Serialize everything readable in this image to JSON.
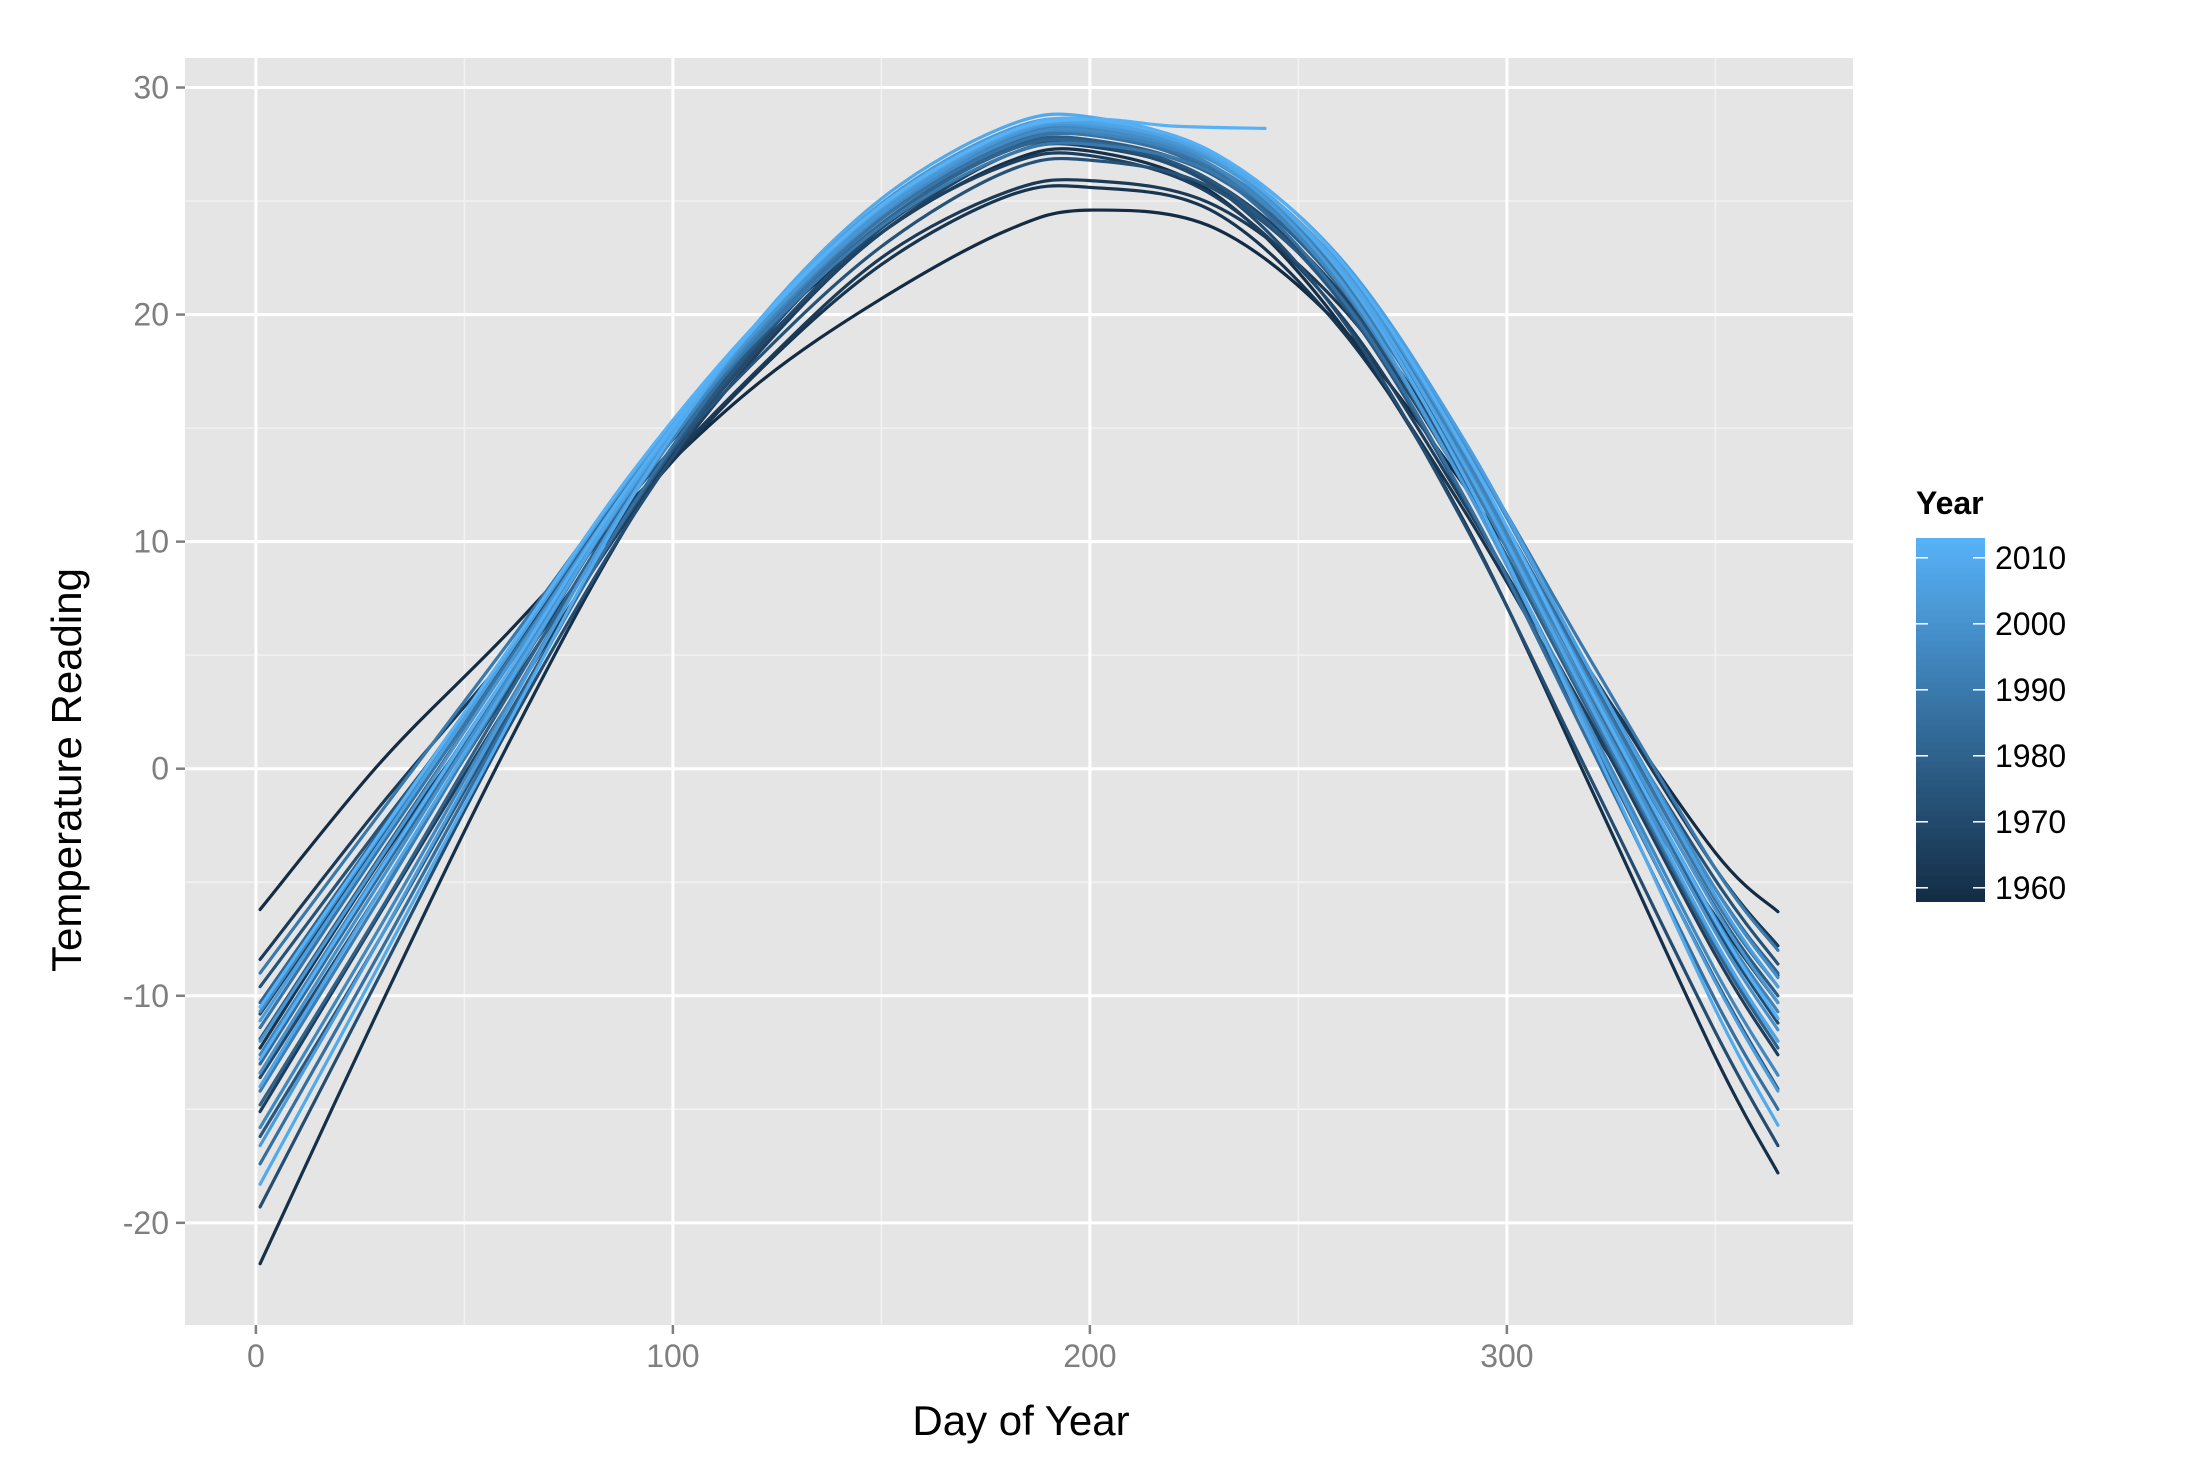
{
  "chart_data": {
    "type": "line",
    "title": "",
    "xlabel": "Day of Year",
    "ylabel": "Temperature Reading",
    "xlim": [
      -17,
      383
    ],
    "ylim": [
      -24.5,
      31.3
    ],
    "x_ticks": [
      0,
      100,
      200,
      300
    ],
    "x_tick_labels": [
      "0",
      "100",
      "200",
      "300"
    ],
    "y_ticks": [
      -20,
      -10,
      0,
      10,
      20,
      30
    ],
    "y_tick_labels": [
      "-20",
      "-10",
      "0",
      "10",
      "20",
      "30"
    ],
    "grid": true,
    "colors": {
      "panel_background": "#e5e5e5",
      "grid_major": "#ffffff",
      "grid_minor": "#f2f2f2",
      "low_color": "#132b43",
      "high_color": "#56b1f7"
    },
    "legend": {
      "title": "Year",
      "placement": "right",
      "type": "colorbar",
      "range": [
        1958,
        2013
      ],
      "breaks": [
        1960,
        1970,
        1980,
        1990,
        2000,
        2010
      ],
      "break_labels": [
        "1960",
        "1970",
        "1980",
        "1990",
        "2000",
        "2010"
      ]
    },
    "x_values": [
      1,
      30,
      60,
      90,
      120,
      150,
      180,
      200,
      230,
      260,
      290,
      320,
      350,
      365
    ],
    "series": [
      {
        "year": 1958,
        "values": [
          -6.2,
          0.3,
          5.9,
          11.8,
          16.9,
          20.7,
          23.7,
          24.6,
          23.8,
          19.5,
          12.4,
          4.2,
          -3.7,
          -6.3
        ]
      },
      {
        "year": 1960,
        "values": [
          -21.8,
          -10.4,
          0.9,
          11.0,
          18.8,
          23.6,
          26.7,
          27.2,
          25.3,
          19.6,
          10.8,
          -0.8,
          -12.7,
          -17.8
        ]
      },
      {
        "year": 1962,
        "values": [
          -12.3,
          -4.0,
          3.8,
          11.4,
          17.4,
          22.2,
          25.2,
          25.6,
          24.5,
          19.4,
          11.3,
          1.9,
          -6.5,
          -10.3
        ]
      },
      {
        "year": 1964,
        "values": [
          -8.4,
          -1.6,
          4.9,
          11.7,
          17.5,
          22.5,
          25.4,
          25.9,
          24.8,
          20.4,
          12.9,
          4.3,
          -4.4,
          -7.8
        ]
      },
      {
        "year": 1966,
        "values": [
          -15.1,
          -6.3,
          2.7,
          11.2,
          18.2,
          23.6,
          26.6,
          27.0,
          25.2,
          20.0,
          11.6,
          2.1,
          -8.2,
          -12.6
        ]
      },
      {
        "year": 1968,
        "values": [
          -10.8,
          -3.1,
          4.8,
          12.3,
          18.5,
          23.6,
          27.0,
          27.4,
          25.8,
          21.0,
          13.1,
          3.7,
          -5.3,
          -9.1
        ]
      },
      {
        "year": 1970,
        "values": [
          -13.6,
          -5.3,
          3.3,
          11.6,
          18.4,
          23.8,
          27.0,
          27.5,
          25.7,
          20.8,
          12.5,
          2.7,
          -7.0,
          -11.2
        ]
      },
      {
        "year": 1972,
        "values": [
          -19.3,
          -9.0,
          1.6,
          11.0,
          18.6,
          24.0,
          27.2,
          27.5,
          25.6,
          19.9,
          10.7,
          -0.4,
          -11.6,
          -16.6
        ]
      },
      {
        "year": 1974,
        "values": [
          -9.6,
          -2.5,
          4.7,
          12.0,
          18.0,
          23.0,
          26.3,
          26.8,
          25.5,
          20.8,
          13.0,
          3.9,
          -4.9,
          -8.6
        ]
      },
      {
        "year": 1976,
        "values": [
          -16.2,
          -7.4,
          2.2,
          11.4,
          18.7,
          24.0,
          27.2,
          27.6,
          25.8,
          20.6,
          11.8,
          1.4,
          -9.3,
          -14.1
        ]
      },
      {
        "year": 1978,
        "values": [
          -11.9,
          -3.8,
          4.4,
          12.3,
          18.8,
          24.0,
          27.3,
          27.7,
          26.1,
          21.4,
          13.3,
          3.5,
          -6.1,
          -10.0
        ]
      },
      {
        "year": 1980,
        "values": [
          -14.8,
          -6.2,
          3.1,
          12.0,
          19.0,
          24.4,
          27.6,
          28.0,
          26.2,
          21.2,
          12.6,
          2.4,
          -7.9,
          -12.3
        ]
      },
      {
        "year": 1982,
        "values": [
          -10.3,
          -2.7,
          5.0,
          12.6,
          18.9,
          24.0,
          27.2,
          27.6,
          26.1,
          21.5,
          13.7,
          4.1,
          -5.3,
          -9.0
        ]
      },
      {
        "year": 1984,
        "values": [
          -13.0,
          -4.6,
          3.9,
          12.2,
          19.1,
          24.3,
          27.5,
          27.9,
          26.3,
          21.6,
          13.2,
          3.1,
          -6.8,
          -11.0
        ]
      },
      {
        "year": 1986,
        "values": [
          -17.4,
          -8.0,
          2.0,
          11.5,
          19.0,
          24.4,
          27.6,
          28.0,
          26.2,
          20.8,
          11.9,
          1.0,
          -10.2,
          -15.0
        ]
      },
      {
        "year": 1988,
        "values": [
          -11.4,
          -3.4,
          4.6,
          12.5,
          19.0,
          24.2,
          27.4,
          27.9,
          26.4,
          21.8,
          13.8,
          3.9,
          -5.8,
          -9.6
        ]
      },
      {
        "year": 1990,
        "values": [
          -9.0,
          -1.9,
          5.4,
          12.8,
          18.9,
          23.9,
          27.0,
          27.5,
          26.2,
          21.8,
          14.2,
          4.8,
          -4.4,
          -8.0
        ]
      },
      {
        "year": 1992,
        "values": [
          -14.2,
          -5.6,
          3.5,
          12.3,
          19.3,
          24.5,
          27.7,
          28.1,
          26.5,
          21.6,
          13.0,
          2.6,
          -7.7,
          -12.0
        ]
      },
      {
        "year": 1994,
        "values": [
          -12.6,
          -4.3,
          4.1,
          12.4,
          19.1,
          24.4,
          27.6,
          28.0,
          26.5,
          21.9,
          13.6,
          3.4,
          -6.6,
          -10.7
        ]
      },
      {
        "year": 1996,
        "values": [
          -15.8,
          -6.9,
          2.7,
          11.9,
          19.2,
          24.6,
          27.8,
          28.2,
          26.5,
          21.3,
          12.4,
          1.8,
          -8.9,
          -13.5
        ]
      },
      {
        "year": 1998,
        "values": [
          -10.7,
          -2.9,
          5.0,
          12.9,
          19.3,
          24.4,
          27.6,
          28.1,
          26.7,
          22.2,
          14.2,
          4.3,
          -5.3,
          -9.2
        ]
      },
      {
        "year": 2000,
        "values": [
          -13.4,
          -4.9,
          3.8,
          12.3,
          19.3,
          24.6,
          27.8,
          28.3,
          26.7,
          22.0,
          13.4,
          3.0,
          -7.2,
          -11.5
        ]
      },
      {
        "year": 2002,
        "values": [
          -12.0,
          -3.9,
          4.4,
          12.6,
          19.3,
          24.5,
          27.8,
          28.3,
          26.8,
          22.2,
          13.9,
          3.7,
          -6.2,
          -10.3
        ]
      },
      {
        "year": 2004,
        "values": [
          -16.6,
          -7.4,
          2.5,
          12.0,
          19.5,
          24.9,
          28.1,
          28.5,
          26.8,
          21.5,
          12.4,
          1.6,
          -9.4,
          -14.2
        ]
      },
      {
        "year": 2006,
        "values": [
          -11.1,
          -3.2,
          4.9,
          12.9,
          19.5,
          24.7,
          27.9,
          28.4,
          27.0,
          22.5,
          14.4,
          4.3,
          -5.6,
          -9.6
        ]
      },
      {
        "year": 2008,
        "values": [
          -14.0,
          -5.3,
          3.6,
          12.4,
          19.5,
          24.8,
          28.0,
          28.5,
          26.9,
          22.1,
          13.3,
          2.8,
          -7.6,
          -12.0
        ]
      },
      {
        "year": 2010,
        "values": [
          -18.3,
          -8.5,
          1.8,
          11.9,
          19.6,
          25.1,
          28.3,
          28.7,
          27.0,
          21.9,
          12.8,
          1.3,
          -10.6,
          -15.7
        ]
      },
      {
        "year": 2012,
        "values": [
          -12.8,
          -4.4,
          4.1,
          12.6,
          19.5,
          24.8,
          28.0,
          28.6,
          27.1,
          22.4,
          14.0,
          3.5,
          -6.7,
          -11.0
        ]
      },
      {
        "year": 2013,
        "x": [
          1,
          30,
          60,
          90,
          120,
          150,
          180,
          200,
          220,
          242
        ],
        "values": [
          -10.5,
          -2.8,
          5.1,
          13.0,
          19.6,
          24.8,
          28.0,
          28.6,
          28.3,
          28.2
        ]
      }
    ]
  }
}
